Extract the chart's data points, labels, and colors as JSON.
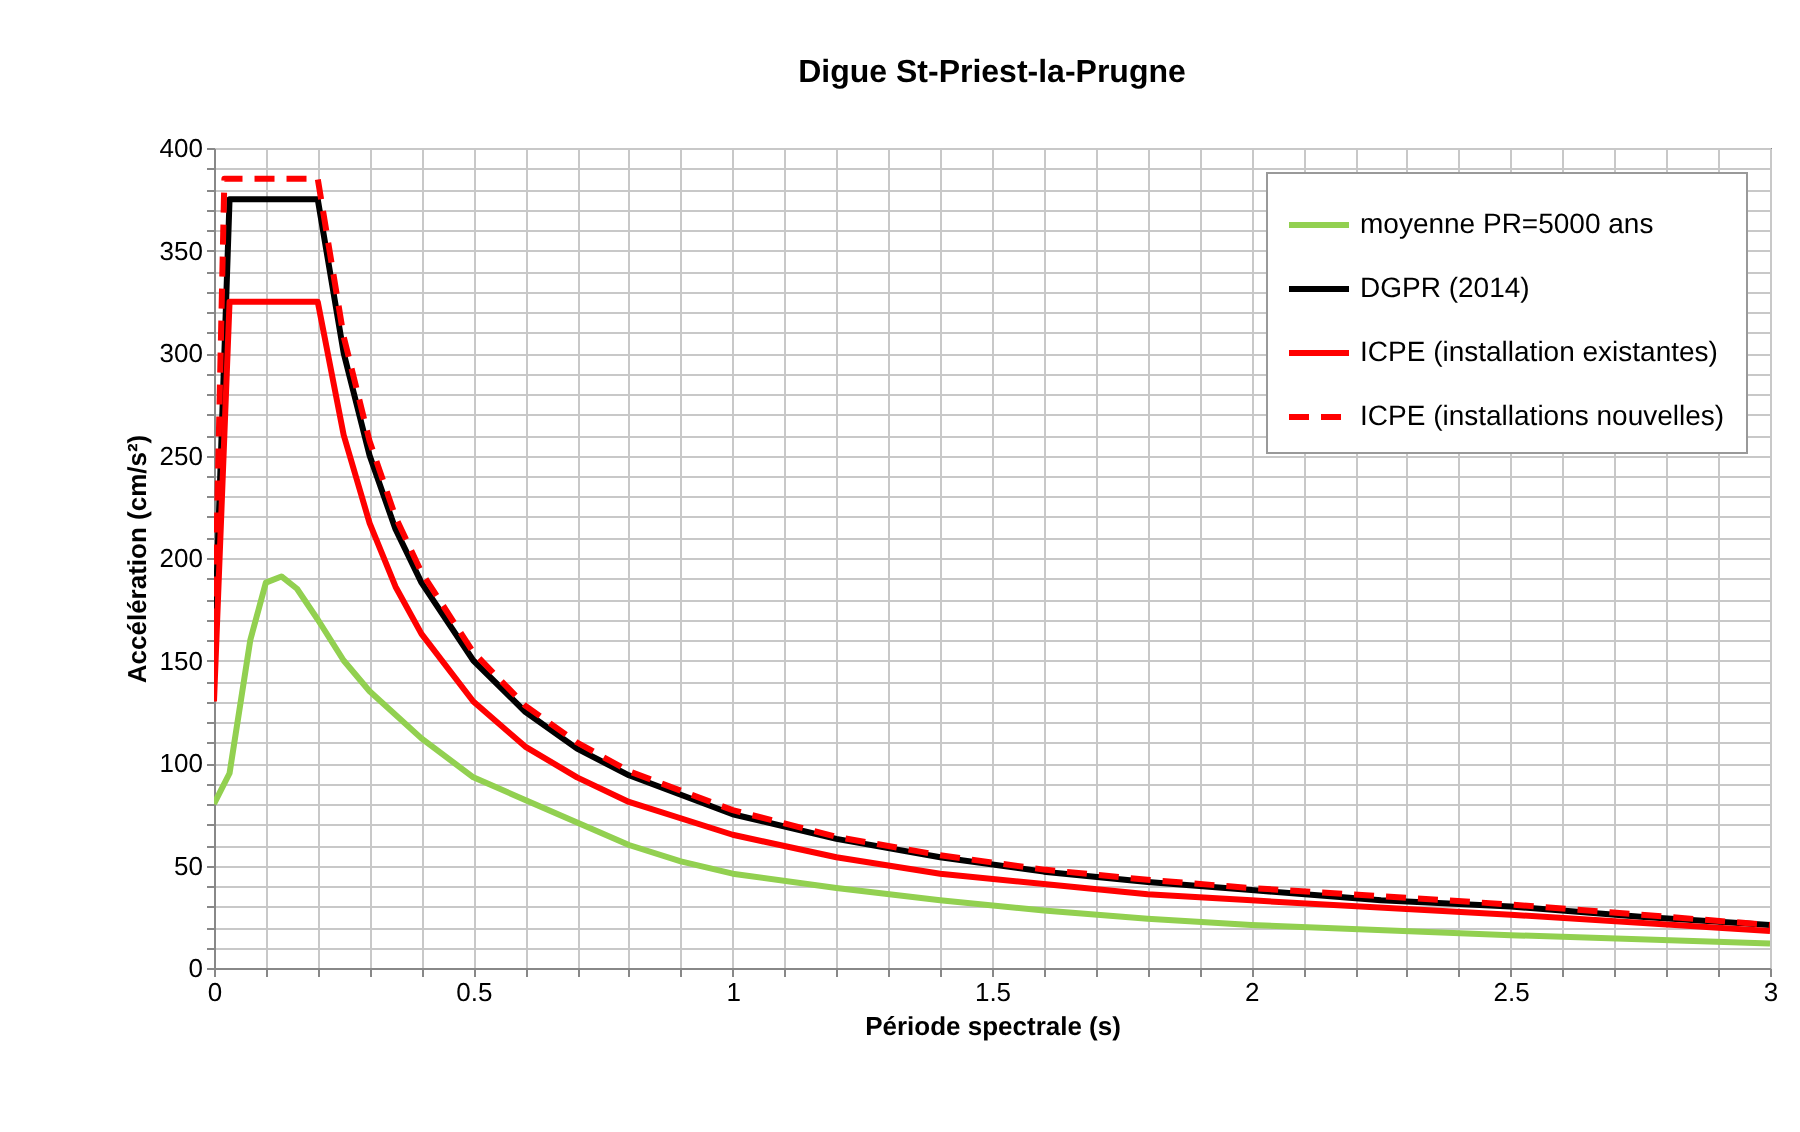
{
  "chart_data": {
    "type": "line",
    "title": "Digue St-Priest-la-Prugne",
    "xlabel": "Période spectrale (s)",
    "ylabel": "Accélération (cm/s²)",
    "xlim": [
      0,
      3
    ],
    "ylim": [
      0,
      400
    ],
    "xticks": [
      0,
      {
        "value": 0.1,
        "label": null
      },
      {
        "value": 0.2,
        "label": null
      },
      {
        "value": 0.3,
        "label": null
      },
      {
        "value": 0.4,
        "label": null
      },
      0.5,
      {
        "value": 0.6,
        "label": null
      },
      {
        "value": 0.7,
        "label": null
      },
      {
        "value": 0.8,
        "label": null
      },
      {
        "value": 0.9,
        "label": null
      },
      1,
      {
        "value": 1.1,
        "label": null
      },
      {
        "value": 1.2,
        "label": null
      },
      {
        "value": 1.3,
        "label": null
      },
      {
        "value": 1.4,
        "label": null
      },
      1.5,
      {
        "value": 1.6,
        "label": null
      },
      {
        "value": 1.7,
        "label": null
      },
      {
        "value": 1.8,
        "label": null
      },
      {
        "value": 1.9,
        "label": null
      },
      2,
      {
        "value": 2.1,
        "label": null
      },
      {
        "value": 2.2,
        "label": null
      },
      {
        "value": 2.3,
        "label": null
      },
      {
        "value": 2.4,
        "label": null
      },
      2.5,
      {
        "value": 2.6,
        "label": null
      },
      {
        "value": 2.7,
        "label": null
      },
      {
        "value": 2.8,
        "label": null
      },
      {
        "value": 2.9,
        "label": null
      },
      3
    ],
    "yticks": [
      0,
      {
        "value": 10,
        "label": null
      },
      {
        "value": 20,
        "label": null
      },
      {
        "value": 30,
        "label": null
      },
      {
        "value": 40,
        "label": null
      },
      50,
      {
        "value": 60,
        "label": null
      },
      {
        "value": 70,
        "label": null
      },
      {
        "value": 80,
        "label": null
      },
      {
        "value": 90,
        "label": null
      },
      100,
      {
        "value": 110,
        "label": null
      },
      {
        "value": 120,
        "label": null
      },
      {
        "value": 130,
        "label": null
      },
      {
        "value": 140,
        "label": null
      },
      150,
      {
        "value": 160,
        "label": null
      },
      {
        "value": 170,
        "label": null
      },
      {
        "value": 180,
        "label": null
      },
      {
        "value": 190,
        "label": null
      },
      200,
      {
        "value": 210,
        "label": null
      },
      {
        "value": 220,
        "label": null
      },
      {
        "value": 230,
        "label": null
      },
      {
        "value": 240,
        "label": null
      },
      250,
      {
        "value": 260,
        "label": null
      },
      {
        "value": 270,
        "label": null
      },
      {
        "value": 280,
        "label": null
      },
      {
        "value": 290,
        "label": null
      },
      300,
      {
        "value": 310,
        "label": null
      },
      {
        "value": 320,
        "label": null
      },
      {
        "value": 330,
        "label": null
      },
      {
        "value": 340,
        "label": null
      },
      350,
      {
        "value": 360,
        "label": null
      },
      {
        "value": 370,
        "label": null
      },
      {
        "value": 380,
        "label": null
      },
      {
        "value": 390,
        "label": null
      },
      400
    ],
    "grid": true,
    "legend": "top right",
    "marker": "none",
    "series": [
      {
        "name": "moyenne PR=5000 ans",
        "color": "#92d050",
        "line_style": "solid",
        "x": [
          0,
          0.03,
          0.07,
          0.1,
          0.13,
          0.16,
          0.2,
          0.25,
          0.3,
          0.4,
          0.5,
          0.6,
          0.7,
          0.8,
          0.9,
          1.0,
          1.2,
          1.4,
          1.6,
          1.8,
          2.0,
          2.5,
          3.0
        ],
        "values": [
          80,
          95,
          160,
          188,
          191,
          185,
          170,
          150,
          135,
          112,
          93,
          82,
          71,
          60,
          52,
          46,
          39,
          33,
          28,
          24,
          21,
          16,
          12
        ]
      },
      {
        "name": "DGPR (2014)",
        "color": "#000000",
        "line_style": "solid",
        "x": [
          0,
          0.03,
          0.2,
          0.25,
          0.3,
          0.35,
          0.4,
          0.5,
          0.6,
          0.7,
          0.8,
          1.0,
          1.2,
          1.4,
          1.6,
          1.8,
          2.0,
          2.25,
          2.5,
          2.75,
          3.0
        ],
        "values": [
          150,
          375,
          375,
          300,
          250,
          214,
          188,
          150,
          125,
          107,
          94,
          75,
          63,
          54,
          47,
          42,
          38,
          33,
          30,
          25,
          21
        ]
      },
      {
        "name": "ICPE (installation existantes)",
        "color": "#ff0000",
        "line_style": "solid",
        "x": [
          0,
          0.03,
          0.2,
          0.25,
          0.3,
          0.35,
          0.4,
          0.5,
          0.6,
          0.7,
          0.8,
          1.0,
          1.2,
          1.4,
          1.6,
          1.8,
          2.0,
          2.5,
          3.0
        ],
        "values": [
          130,
          325,
          325,
          260,
          217,
          186,
          163,
          130,
          108,
          93,
          81,
          65,
          54,
          46,
          41,
          36,
          33,
          26,
          18
        ]
      },
      {
        "name": "ICPE (installations nouvelles)",
        "color": "#ff0000",
        "line_style": "dashed",
        "x": [
          0,
          0.02,
          0.2,
          0.25,
          0.3,
          0.35,
          0.4,
          0.5,
          0.6,
          0.7,
          0.8,
          1.0,
          1.2,
          1.4,
          1.6,
          1.8,
          2.0,
          2.5,
          3.0
        ],
        "values": [
          150,
          385,
          385,
          308,
          257,
          220,
          193,
          154,
          128,
          110,
          96,
          77,
          64,
          55,
          48,
          43,
          39,
          31,
          21
        ]
      }
    ]
  }
}
